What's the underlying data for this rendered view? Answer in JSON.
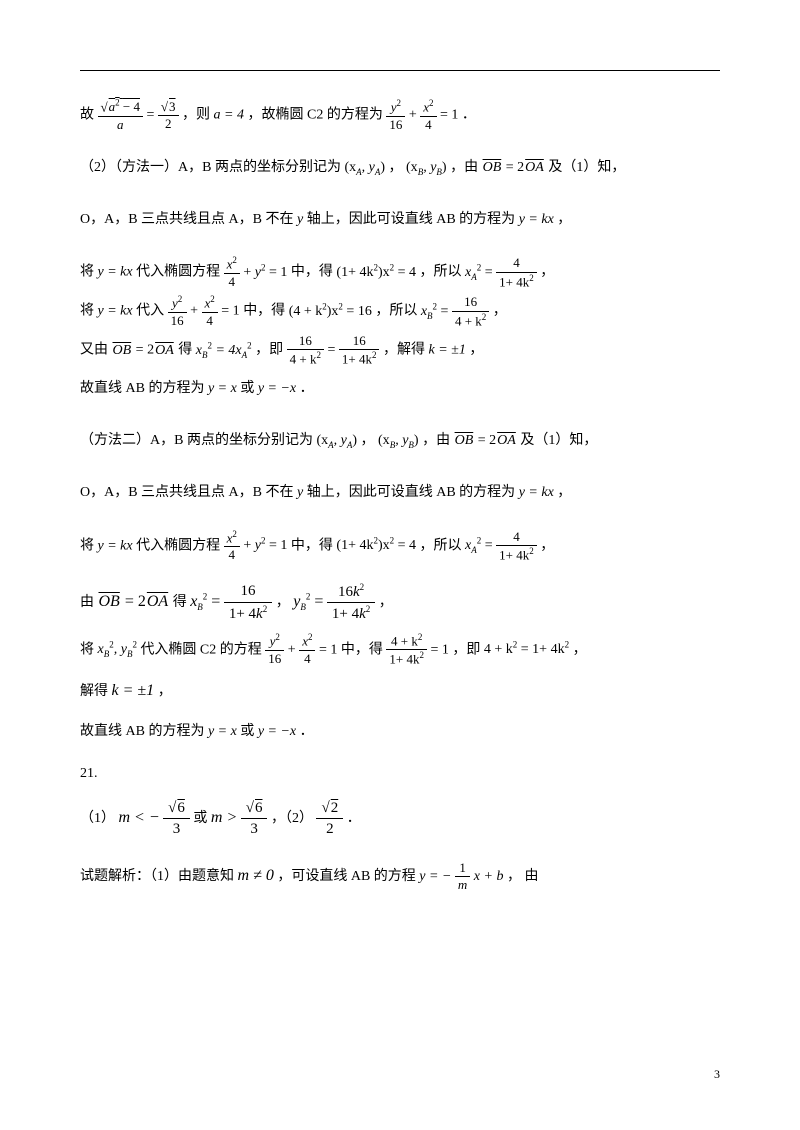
{
  "page_number": "3",
  "problem21_label": "21.",
  "lines": {
    "l1_a": "故",
    "l1_eq1": "=",
    "l1_b": "，则",
    "l1_c": "，故椭圆 C2 的方程为",
    "l1_d": "．",
    "l1_num1_a": "a",
    "l1_num1_b": "− 4",
    "l1_den1": "a",
    "l1_num2": "3",
    "l1_den2": "2",
    "l1_a4": "a = 4",
    "l1_f1n": "y",
    "l1_f1d": "16",
    "l1_plus": "+",
    "l1_f2n": "x",
    "l1_f2d": "4",
    "l1_eq_one": "= 1",
    "l2_a": "（2）（方法一）A，B 两点的坐标分别记为",
    "l2_xa": "(x",
    "l2_ya": ", y",
    "l2_close": ")",
    "l2_b": "，",
    "l2_xb": "(x",
    "l2_yb": ", y",
    "l2_c": "，由",
    "l2_ob": "OB",
    "l2_eq": "= 2",
    "l2_oa": "OA",
    "l2_d": "及（1）知，",
    "l3_a": "O，A，B 三点共线且点 A，B 不在",
    "l3_y": "y",
    "l3_b": "轴上，因此可设直线 AB 的方程为",
    "l3_ykx": "y = kx",
    "l3_c": "，",
    "l4_a": "将",
    "l4_b": "代入椭圆方程",
    "l4_c": "中，得",
    "l4_d": "，所以",
    "l4_e": "，",
    "l4_fnum": "x",
    "l4_fden": "4",
    "l4_y2": "y",
    "l4_eq1": "= 1",
    "l4_mid": "(1+ 4k",
    "l4_mid2": ")x",
    "l4_eq4": "= 4",
    "l4_xa2": "x",
    "l4_xa2_eq": "=",
    "l4_xa2_num": "4",
    "l4_xa2_den": "1+ 4k",
    "l5_a": "将",
    "l5_b": "代入",
    "l5_c": "中，得",
    "l5_d": "，所以",
    "l5_4k": "(4 + k",
    "l5_x2": ")x",
    "l5_eq16": "= 16",
    "l5_xb2": "x",
    "l5_xb2_num": "16",
    "l5_xb2_den": "4 + k",
    "l6_a": "又由",
    "l6_b": "得",
    "l6_xb4xa": "= 4x",
    "l6_c": "，即",
    "l6_d": "，解得",
    "l6_kpm1": "k = ±1",
    "l6_e": "，",
    "l6_lnum": "16",
    "l6_lden": "4 + k",
    "l6_rnum": "16",
    "l6_rden": "1+ 4k",
    "l7_a": "故直线 AB 的方程为",
    "l7_yx": "y = x",
    "l7_or": "或",
    "l7_ynx": "y = −x",
    "l7_dot": "．",
    "l8_a": "（方法二）A，B 两点的坐标分别记为",
    "l9_a": "由",
    "l9_b": "得",
    "l10_a": "将",
    "l10_b": "代入椭圆 C2 的方程",
    "l10_c": "中，得",
    "l10_d": "，即",
    "l10_4pk": "4 + k",
    "l10_eq": "= 1+ 4k",
    "l10_res_num": "4 + k",
    "l10_res_den": "1+ 4k",
    "l11_a": "解得",
    "l11_kpm1": "k = ±1",
    "l11_b": "，",
    "l12_a": "（1）",
    "l12_m_lt": "m < −",
    "l12_or": "或",
    "l12_m_gt": "m >",
    "l12_b": "，（2）",
    "l12_c": "．",
    "l12_s6": "6",
    "l12_s3": "3",
    "l12_s2n": "2",
    "l12_s2d": "2",
    "l13_a": "试题解析：（1）由题意知",
    "l13_m0": "m ≠ 0",
    "l13_b": "，可设直线 AB 的方程",
    "l13_y": "y = −",
    "l13_xb": "x + b",
    "l13_num1": "1",
    "l13_denm": "m",
    "l13_c": "， 由",
    "xbyb": "x",
    "ybyb": ", y"
  }
}
